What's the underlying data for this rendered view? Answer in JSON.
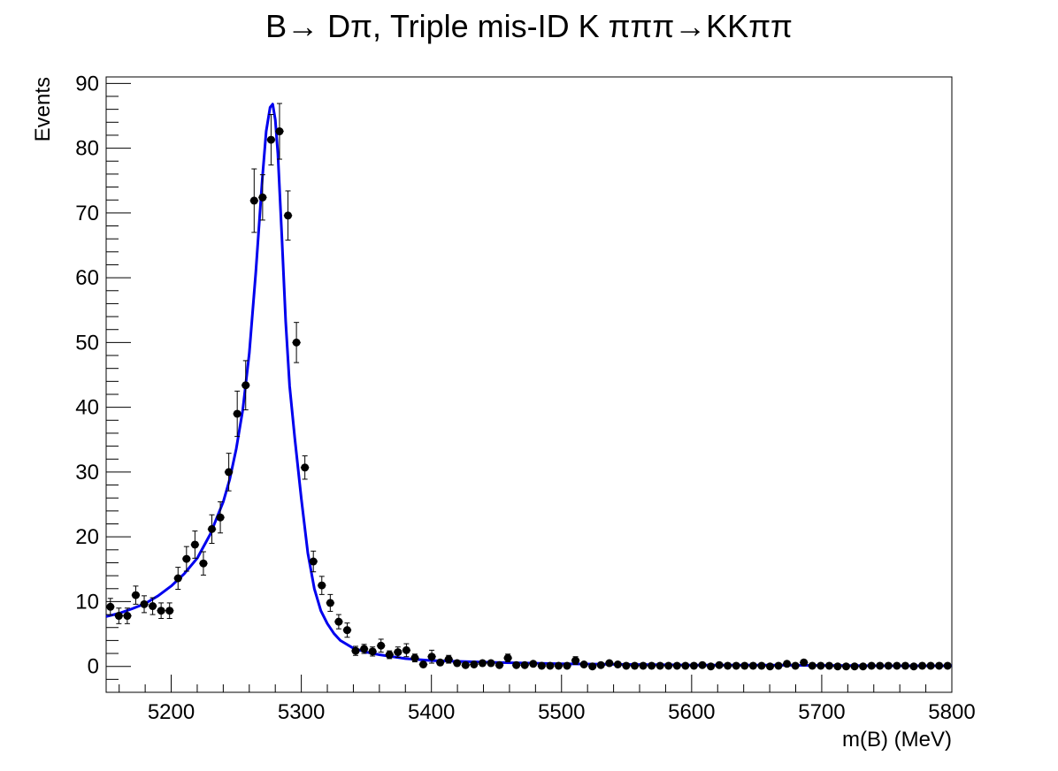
{
  "chart_data": {
    "type": "scatter",
    "title": "B→ Dπ, Triple mis-ID K πππ→KKππ",
    "xlabel": "m(B) (MeV)",
    "ylabel": "Events",
    "xlim": [
      5150,
      5800
    ],
    "ylim": [
      -4,
      91
    ],
    "x_ticks": [
      5200,
      5300,
      5400,
      5500,
      5600,
      5700,
      5800
    ],
    "y_ticks": [
      0,
      10,
      20,
      30,
      40,
      50,
      60,
      70,
      80,
      90
    ],
    "grid": false,
    "bin_width": 6.5,
    "series": [
      {
        "kind": "data",
        "marker": "circle",
        "color": "#000000",
        "x": [
          5153.25,
          5159.75,
          5166.25,
          5172.75,
          5179.25,
          5185.75,
          5192.25,
          5198.75,
          5205.25,
          5211.75,
          5218.25,
          5224.75,
          5231.25,
          5237.75,
          5244.25,
          5250.75,
          5257.25,
          5263.75,
          5270.25,
          5276.75,
          5283.25,
          5289.75,
          5296.25,
          5302.75,
          5309.25,
          5315.75,
          5322.25,
          5328.75,
          5335.25,
          5341.75,
          5348.25,
          5354.75,
          5361.25,
          5367.75,
          5374.25,
          5380.75,
          5387.25,
          5393.75,
          5400.25,
          5406.75,
          5413.25,
          5419.75,
          5426.25,
          5432.75,
          5439.25,
          5445.75,
          5452.25,
          5458.75,
          5465.25,
          5471.75,
          5478.25,
          5484.75,
          5491.25,
          5497.75,
          5504.25,
          5510.75,
          5517.25,
          5523.75,
          5530.25,
          5536.75,
          5543.25,
          5549.75,
          5556.25,
          5562.75,
          5569.25,
          5575.75,
          5582.25,
          5588.75,
          5595.25,
          5601.75,
          5608.25,
          5614.75,
          5621.25,
          5627.75,
          5634.25,
          5640.75,
          5647.25,
          5653.75,
          5660.25,
          5666.75,
          5673.25,
          5679.75,
          5686.25,
          5692.75,
          5699.25,
          5705.75,
          5712.25,
          5718.75,
          5725.25,
          5731.75,
          5738.25,
          5744.75,
          5751.25,
          5757.75,
          5764.25,
          5770.75,
          5777.25,
          5783.75,
          5790.25,
          5796.75
        ],
        "y": [
          9.2,
          7.8,
          7.8,
          11.0,
          9.6,
          9.3,
          8.6,
          8.6,
          13.6,
          16.6,
          18.8,
          15.9,
          21.2,
          23.0,
          30.0,
          39.0,
          43.4,
          71.9,
          72.4,
          81.3,
          82.6,
          69.6,
          50.0,
          30.7,
          16.2,
          12.5,
          9.8,
          6.9,
          5.6,
          2.4,
          2.7,
          2.3,
          3.2,
          1.8,
          2.2,
          2.5,
          1.3,
          0.3,
          1.5,
          0.6,
          1.1,
          0.5,
          0.2,
          0.3,
          0.5,
          0.5,
          0.2,
          1.3,
          0.2,
          0.2,
          0.4,
          0.1,
          0.1,
          0.1,
          0.1,
          0.9,
          0.3,
          0.0,
          0.2,
          0.5,
          0.3,
          0.1,
          0.1,
          0.1,
          0.1,
          0.1,
          0.1,
          0.1,
          0.1,
          0.1,
          0.2,
          0.0,
          0.2,
          0.1,
          0.1,
          0.1,
          0.1,
          0.1,
          0.0,
          0.1,
          0.4,
          0.1,
          0.6,
          0.1,
          0.1,
          0.1,
          0.0,
          0.0,
          0.0,
          0.0,
          0.1,
          0.1,
          0.1,
          0.1,
          0.1,
          0.0,
          0.1,
          0.1,
          0.1,
          0.1
        ],
        "yerr": [
          1.3,
          1.2,
          1.2,
          1.4,
          1.3,
          1.3,
          1.2,
          1.2,
          1.7,
          1.9,
          2.1,
          1.8,
          2.2,
          2.4,
          2.9,
          3.5,
          3.8,
          4.9,
          3.5,
          3.9,
          4.3,
          3.8,
          3.1,
          1.8,
          1.6,
          1.4,
          1.3,
          1.1,
          1.1,
          0.7,
          0.7,
          0.7,
          1.0,
          0.6,
          0.8,
          1.0,
          0.6,
          0.3,
          1.0,
          0.4,
          0.6,
          0.3,
          0.2,
          0.3,
          0.4,
          0.4,
          0.2,
          0.6,
          0.2,
          0.2,
          0.3,
          0.1,
          0.1,
          0.1,
          0.1,
          0.6,
          0.3,
          0.0,
          0.2,
          0.3,
          0.3,
          0.1,
          0.1,
          0.1,
          0.1,
          0.1,
          0.1,
          0.1,
          0.1,
          0.1,
          0.2,
          0.0,
          0.2,
          0.1,
          0.1,
          0.1,
          0.1,
          0.1,
          0.0,
          0.1,
          0.3,
          0.1,
          0.4,
          0.1,
          0.1,
          0.1,
          0.0,
          0.0,
          0.0,
          0.0,
          0.1,
          0.1,
          0.1,
          0.1,
          0.1,
          0.0,
          0.1,
          0.1,
          0.1,
          0.1
        ]
      },
      {
        "kind": "fit",
        "type": "line",
        "color": "#0000ee",
        "x": [
          5150,
          5160,
          5170,
          5180,
          5190,
          5200,
          5210,
          5220,
          5230,
          5240,
          5245,
          5250,
          5255,
          5260,
          5265,
          5270,
          5273,
          5276,
          5278,
          5280,
          5282,
          5285,
          5288,
          5291,
          5295,
          5300,
          5305,
          5310,
          5315,
          5320,
          5325,
          5330,
          5340,
          5350,
          5360,
          5380,
          5400,
          5450,
          5500,
          5550,
          5600,
          5650,
          5700,
          5750,
          5800
        ],
        "y": [
          7.7,
          8.2,
          8.9,
          9.7,
          10.9,
          12.4,
          14.3,
          16.7,
          20.4,
          25.4,
          28.9,
          33.6,
          39.6,
          48.3,
          60.8,
          75.2,
          82.6,
          86.3,
          86.8,
          84.4,
          79.1,
          66.5,
          53.2,
          43.3,
          35.2,
          25.9,
          17.5,
          12.0,
          8.6,
          6.6,
          5.1,
          4.0,
          2.8,
          2.2,
          1.8,
          1.2,
          0.9,
          0.6,
          0.4,
          0.3,
          0.2,
          0.2,
          0.15,
          0.1,
          0.1
        ]
      }
    ]
  }
}
